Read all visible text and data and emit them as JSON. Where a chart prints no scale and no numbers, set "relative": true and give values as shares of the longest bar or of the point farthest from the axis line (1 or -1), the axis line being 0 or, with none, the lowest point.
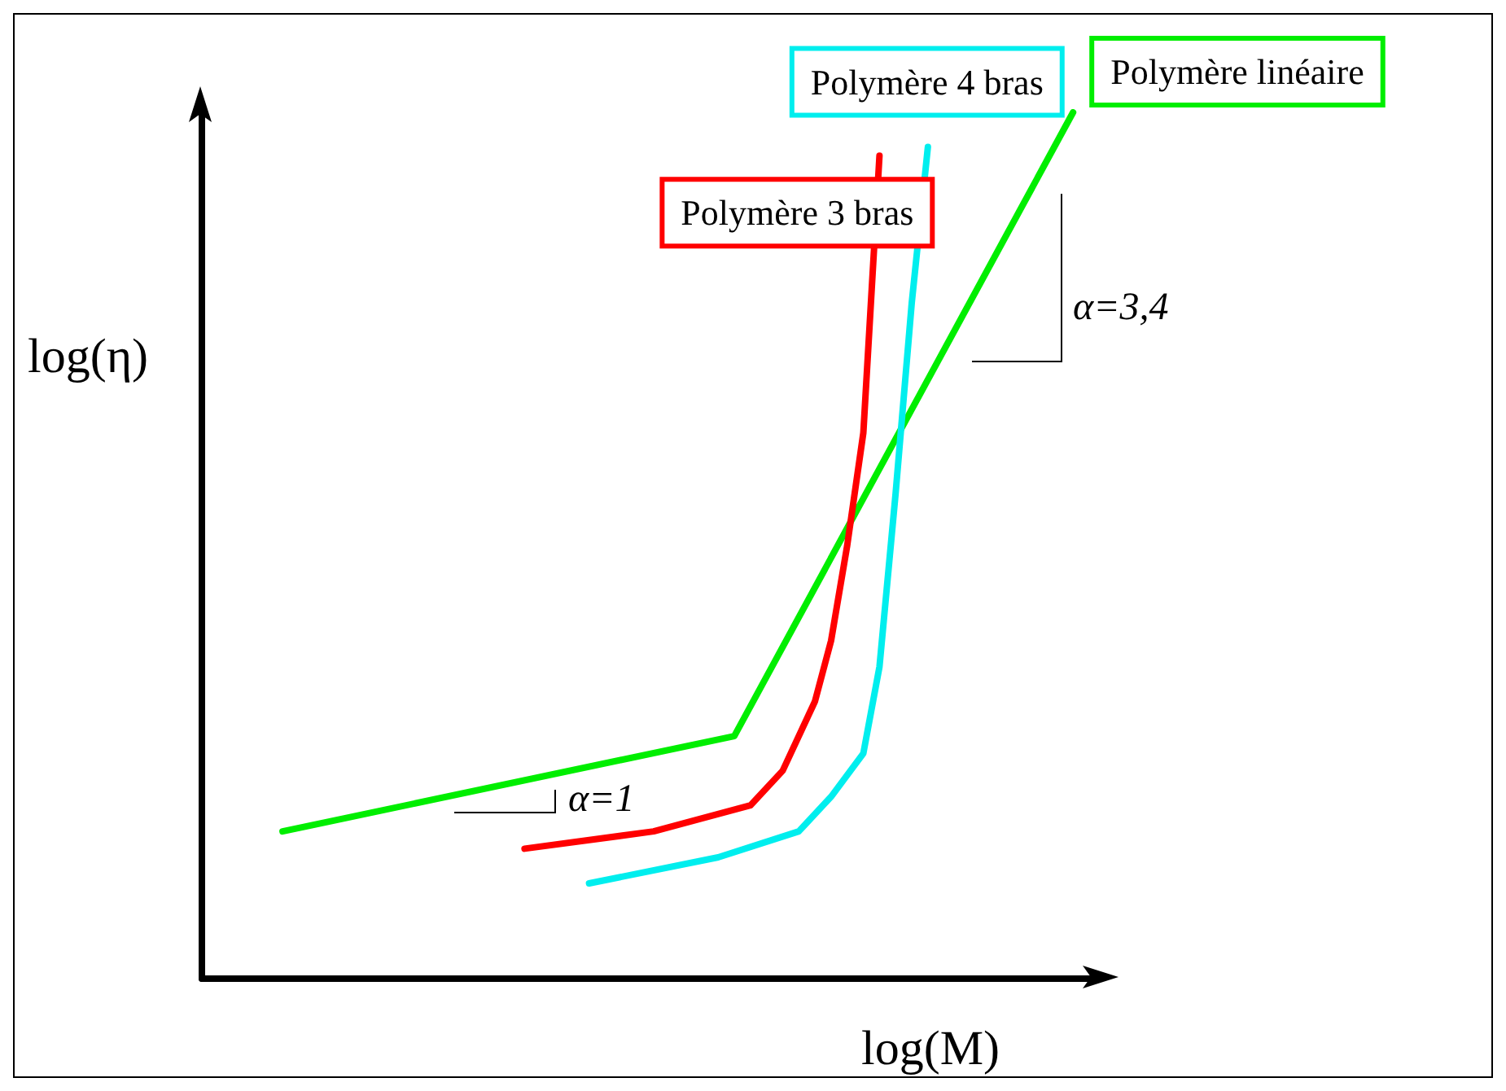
{
  "chart_data": {
    "type": "line",
    "relative": true,
    "xlabel": "log(M)",
    "ylabel": "log(η)",
    "legend": false,
    "grid": false,
    "marker": "none",
    "line_style": "solid",
    "categories": [
      null,
      null,
      null,
      null,
      null,
      null,
      null,
      null,
      null,
      null,
      null,
      null,
      null,
      null,
      null,
      null,
      null,
      null,
      null,
      null,
      null,
      null,
      null,
      null,
      null,
      null,
      null,
      null,
      null,
      null,
      null,
      null,
      null,
      null,
      null,
      null,
      null,
      null,
      null,
      null,
      null,
      null,
      null,
      null,
      null,
      null,
      null,
      null,
      null,
      null,
      null,
      null,
      null,
      null,
      null,
      null
    ],
    "series": [
      {
        "name": "Polymère linéaire",
        "color": "#00ee00",
        "values": [
          null,
          null,
          null,
          null,
          null,
          0.17,
          null,
          null,
          null,
          null,
          null,
          null,
          null,
          null,
          null,
          null,
          null,
          null,
          null,
          null,
          null,
          null,
          null,
          null,
          null,
          null,
          null,
          null,
          null,
          null,
          null,
          null,
          null,
          0.28,
          null,
          null,
          null,
          null,
          null,
          null,
          null,
          null,
          null,
          null,
          null,
          null,
          null,
          null,
          null,
          null,
          null,
          null,
          null,
          null,
          1.0,
          null
        ]
      },
      {
        "name": "Polymère 3 bras",
        "color": "#ff0000",
        "values": [
          null,
          null,
          null,
          null,
          null,
          null,
          null,
          null,
          null,
          null,
          null,
          null,
          null,
          null,
          null,
          null,
          null,
          null,
          null,
          null,
          0.15,
          null,
          null,
          null,
          null,
          null,
          null,
          null,
          0.17,
          null,
          null,
          null,
          null,
          null,
          0.2,
          null,
          0.24,
          null,
          0.32,
          0.39,
          0.5,
          0.63,
          0.95,
          null,
          null,
          null,
          null,
          null,
          null,
          null,
          null,
          null,
          null,
          null,
          null,
          null
        ]
      },
      {
        "name": "Polymère 4 bras",
        "color": "#00eeee",
        "values": [
          null,
          null,
          null,
          null,
          null,
          null,
          null,
          null,
          null,
          null,
          null,
          null,
          null,
          null,
          null,
          null,
          null,
          null,
          null,
          null,
          null,
          null,
          null,
          null,
          0.11,
          null,
          null,
          null,
          null,
          null,
          null,
          null,
          0.14,
          null,
          null,
          null,
          null,
          0.17,
          null,
          0.21,
          null,
          0.26,
          0.36,
          0.56,
          0.78,
          0.96,
          null,
          null,
          null,
          null,
          null,
          null,
          null,
          null,
          null,
          null
        ]
      }
    ],
    "annotations": [
      "α=1",
      "α=3,4"
    ]
  }
}
